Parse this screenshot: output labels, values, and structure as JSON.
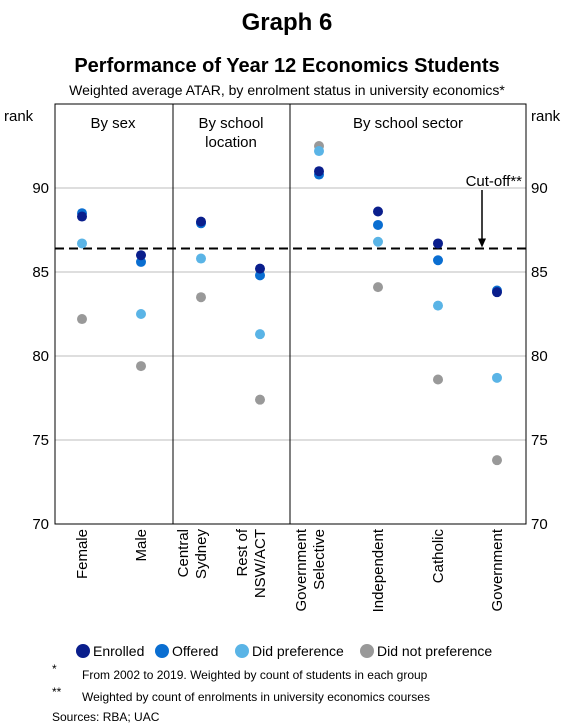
{
  "graph_label": "Graph 6",
  "chart_data": {
    "type": "scatter",
    "title": "Performance of Year 12 Economics Students",
    "subtitle": "Weighted average ATAR, by enrolment status in university economics*",
    "y_unit_left": "rank",
    "y_unit_right": "rank",
    "ylim": [
      70,
      95
    ],
    "yticks": [
      70,
      75,
      80,
      85,
      90
    ],
    "grid": true,
    "panels": [
      {
        "label_lines": [
          "By sex"
        ],
        "categories": [
          0,
          1
        ]
      },
      {
        "label_lines": [
          "By school",
          "location"
        ],
        "categories": [
          2,
          3
        ]
      },
      {
        "label_lines": [
          "By school sector"
        ],
        "categories": [
          4,
          5,
          6,
          7
        ]
      }
    ],
    "categories": [
      [
        "Female"
      ],
      [
        "Male"
      ],
      [
        "Central",
        "Sydney"
      ],
      [
        "Rest of",
        "NSW/ACT"
      ],
      [
        "Government",
        "Selective"
      ],
      [
        "Independent"
      ],
      [
        "Catholic"
      ],
      [
        "Government"
      ]
    ],
    "series": [
      {
        "name": "Enrolled",
        "color": "#0a1e8c",
        "values": [
          88.3,
          86.0,
          88.0,
          85.2,
          91.0,
          88.6,
          86.7,
          83.8
        ]
      },
      {
        "name": "Offered",
        "color": "#0a6ed1",
        "values": [
          88.5,
          85.6,
          87.9,
          84.8,
          90.8,
          87.8,
          85.7,
          83.9
        ]
      },
      {
        "name": "Did preference",
        "color": "#5ab4e6",
        "values": [
          86.7,
          82.5,
          85.8,
          81.3,
          92.2,
          86.8,
          83.0,
          78.7
        ]
      },
      {
        "name": "Did not preference",
        "color": "#999999",
        "values": [
          82.2,
          79.4,
          83.5,
          77.4,
          92.5,
          84.1,
          78.6,
          73.8
        ]
      }
    ],
    "cutoff": {
      "value": 86.4,
      "label": "Cut-off**"
    },
    "legend_position": "bottom"
  },
  "footnotes": [
    {
      "mark": "*",
      "text": "From 2002 to 2019. Weighted by count of students in each group"
    },
    {
      "mark": "**",
      "text": "Weighted by count of enrolments in university economics courses"
    }
  ],
  "sources": "Sources: RBA; UAC"
}
